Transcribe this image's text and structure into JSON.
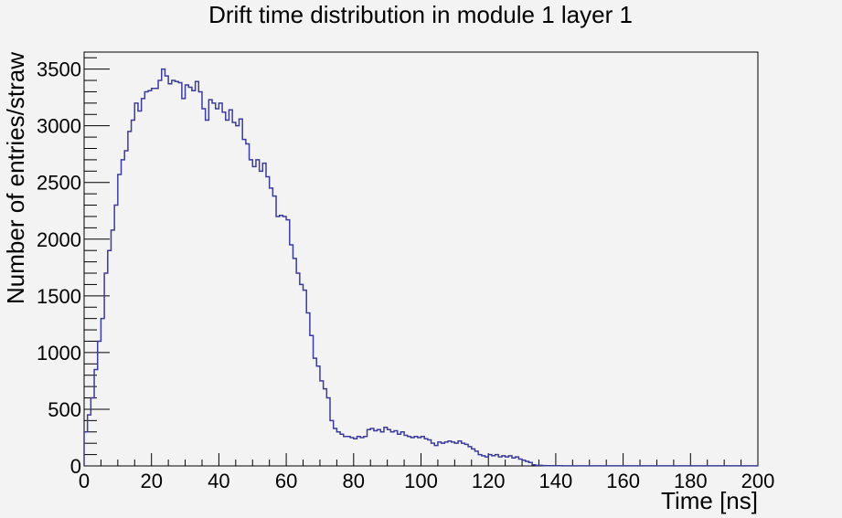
{
  "chart_data": {
    "type": "line",
    "title": "Drift time distribution in module 1 layer 1",
    "xlabel": "Time [ns]",
    "ylabel": "Number of entries/straw",
    "xlim": [
      0,
      200
    ],
    "ylim": [
      0,
      3650
    ],
    "grid": false,
    "legend": "none",
    "x_ticks": [
      0,
      20,
      40,
      60,
      80,
      100,
      120,
      140,
      160,
      180,
      200
    ],
    "x_tick_labels": [
      "0",
      "20",
      "40",
      "60",
      "80",
      "100",
      "120",
      "140",
      "160",
      "180",
      "200"
    ],
    "y_ticks": [
      0,
      500,
      1000,
      1500,
      2000,
      2500,
      3000,
      3500
    ],
    "y_tick_labels": [
      "0",
      "500",
      "1000",
      "1500",
      "2000",
      "2500",
      "3000",
      "3500"
    ],
    "bin_width": 1,
    "x_start": 0,
    "series": [
      {
        "color": "#3b3b9c",
        "values": [
          300,
          450,
          600,
          850,
          1100,
          1300,
          1700,
          1900,
          2080,
          2300,
          2570,
          2700,
          2780,
          2950,
          3050,
          3200,
          3130,
          3240,
          3300,
          3310,
          3330,
          3330,
          3400,
          3500,
          3440,
          3370,
          3400,
          3390,
          3380,
          3240,
          3360,
          3340,
          3310,
          3390,
          3300,
          3150,
          3050,
          3230,
          3200,
          3150,
          3200,
          3120,
          3050,
          3140,
          3030,
          3000,
          3060,
          2880,
          2840,
          2700,
          2640,
          2700,
          2600,
          2670,
          2550,
          2450,
          2380,
          2200,
          2210,
          2200,
          2170,
          1950,
          1830,
          1700,
          1600,
          1550,
          1350,
          1150,
          950,
          880,
          750,
          680,
          600,
          400,
          330,
          300,
          280,
          260,
          260,
          250,
          240,
          260,
          250,
          260,
          320,
          330,
          310,
          320,
          300,
          340,
          320,
          300,
          310,
          280,
          300,
          270,
          260,
          250,
          260,
          250,
          260,
          240,
          230,
          200,
          180,
          210,
          200,
          210,
          220,
          210,
          200,
          220,
          200,
          190,
          170,
          150,
          130,
          100,
          90,
          80,
          100,
          90,
          100,
          80,
          90,
          80,
          90,
          70,
          80,
          60,
          50,
          40,
          30,
          10,
          5,
          5,
          3,
          2,
          2,
          2,
          2,
          2,
          1,
          1,
          1,
          1,
          1,
          1,
          1,
          1,
          1,
          1,
          1,
          1,
          1,
          1,
          1,
          1,
          1,
          1,
          1,
          1,
          1,
          1,
          1,
          1,
          1,
          1,
          1,
          1,
          1,
          1,
          1,
          1,
          1,
          1,
          1,
          1,
          1,
          1,
          1,
          1,
          1,
          1,
          1,
          1,
          1,
          1,
          1,
          1,
          1,
          1,
          1,
          1,
          1,
          1,
          1,
          1,
          1,
          1
        ]
      }
    ]
  }
}
